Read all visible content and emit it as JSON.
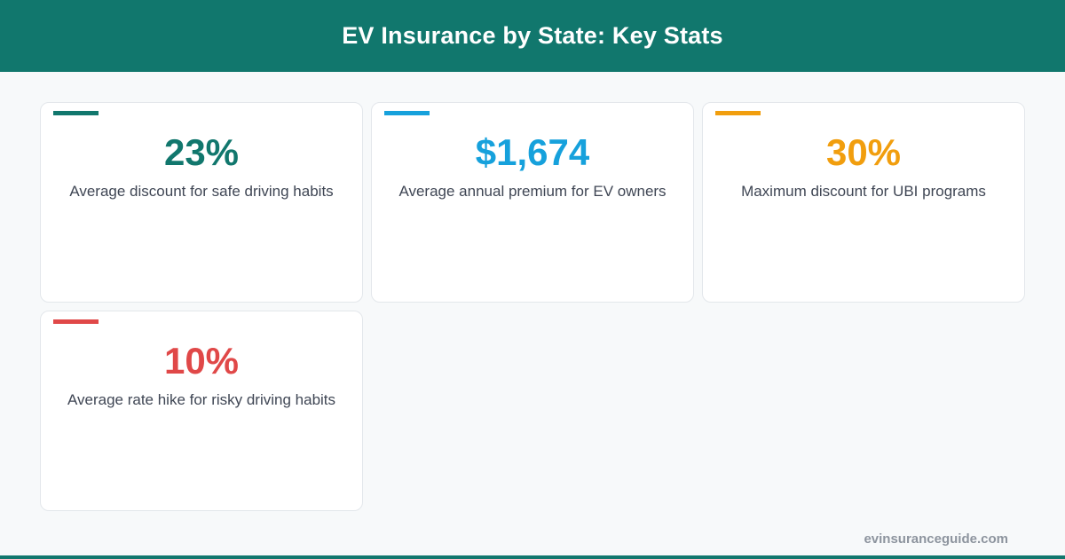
{
  "header": {
    "title": "EV Insurance by State: Key Stats",
    "background": "#11776d"
  },
  "stats": [
    {
      "value": "23%",
      "label": "Average discount for safe driving habits",
      "color": "#11776d"
    },
    {
      "value": "$1,674",
      "label": "Average annual premium for EV owners",
      "color": "#16a1dc"
    },
    {
      "value": "30%",
      "label": "Maximum discount for UBI programs",
      "color": "#f19e0e"
    },
    {
      "value": "10%",
      "label": "Average rate hike for risky driving habits",
      "color": "#e04848"
    }
  ],
  "footer": {
    "site": "evinsuranceguide.com"
  }
}
